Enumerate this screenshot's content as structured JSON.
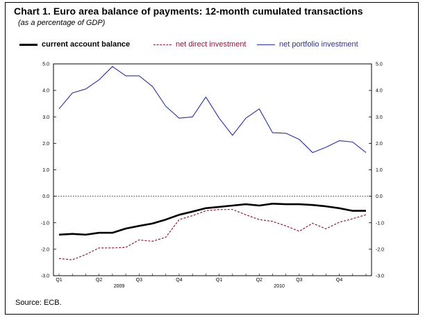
{
  "title": "Chart 1. Euro area balance of payments: 12-month cumulated transactions",
  "subtitle": "(as a percentage of GDP)",
  "source": "Source: ECB.",
  "colors": {
    "current_account": "#000000",
    "direct_investment": "#8b1a3a",
    "portfolio_investment": "#2b2fa0"
  },
  "chart_data": {
    "type": "line",
    "ylim": [
      -3.0,
      5.0
    ],
    "yticks": [
      "5.0",
      "4.0",
      "3.0",
      "2.0",
      "1.0",
      "0.0",
      "-1.0",
      "-2.0",
      "-3.0"
    ],
    "quarter_labels": [
      "Q1",
      "Q2",
      "Q3",
      "Q4",
      "Q1",
      "Q2",
      "Q3",
      "Q4"
    ],
    "year_labels": [
      "2009",
      "2010"
    ],
    "x": [
      "Jan 2009",
      "Feb 2009",
      "Mar 2009",
      "Apr 2009",
      "May 2009",
      "Jun 2009",
      "Jul 2009",
      "Aug 2009",
      "Sep 2009",
      "Oct 2009",
      "Nov 2009",
      "Dec 2009",
      "Jan 2010",
      "Feb 2010",
      "Mar 2010",
      "Apr 2010",
      "May 2010",
      "Jun 2010",
      "Jul 2010",
      "Aug 2010",
      "Sep 2010",
      "Oct 2010",
      "Nov 2010",
      "Dec 2010"
    ],
    "series": [
      {
        "name": "current account balance",
        "style": "solid-thick",
        "values": [
          -1.45,
          -1.42,
          -1.45,
          -1.38,
          -1.38,
          -1.22,
          -1.12,
          -1.03,
          -0.88,
          -0.7,
          -0.58,
          -0.45,
          -0.4,
          -0.35,
          -0.3,
          -0.35,
          -0.28,
          -0.3,
          -0.3,
          -0.33,
          -0.38,
          -0.45,
          -0.55,
          -0.55
        ]
      },
      {
        "name": "net direct investment",
        "style": "dashed",
        "values": [
          -2.35,
          -2.4,
          -2.2,
          -1.95,
          -1.95,
          -1.93,
          -1.65,
          -1.7,
          -1.55,
          -0.88,
          -0.73,
          -0.55,
          -0.5,
          -0.5,
          -0.7,
          -0.88,
          -0.95,
          -1.12,
          -1.32,
          -1.02,
          -1.23,
          -0.98,
          -0.85,
          -0.7
        ]
      },
      {
        "name": "net portfolio investment",
        "style": "solid-thin",
        "values": [
          3.3,
          3.9,
          4.05,
          4.4,
          4.9,
          4.55,
          4.55,
          4.15,
          3.4,
          2.95,
          3.0,
          3.75,
          2.95,
          2.3,
          2.95,
          3.3,
          2.4,
          2.38,
          2.15,
          1.65,
          1.85,
          2.1,
          2.05,
          1.65
        ]
      }
    ]
  }
}
